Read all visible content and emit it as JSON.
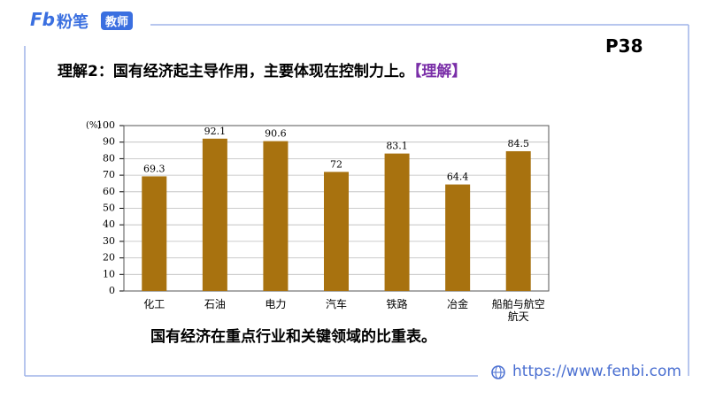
{
  "header": {
    "logo_mark": "Fb",
    "logo": "粉笔",
    "badge": "教师",
    "page": "P38"
  },
  "heading": {
    "text": "理解2：国有经济起主导作用，主要体现在控制力上。",
    "tag": "【理解】"
  },
  "chart_data": {
    "type": "bar",
    "y_unit": "(%)",
    "categories": [
      "化工",
      "石油",
      "电力",
      "汽车",
      "铁路",
      "冶金",
      "船舶与航空航天"
    ],
    "values": [
      69.3,
      92.1,
      90.6,
      72,
      83.1,
      64.4,
      84.5
    ],
    "color": "#a8720f",
    "ylim": [
      0,
      100
    ],
    "yticks": [
      0,
      10,
      20,
      30,
      40,
      50,
      60,
      70,
      80,
      90,
      100
    ],
    "grid": true,
    "caption": "国有经济在重点行业和关键领域的比重表。"
  },
  "footer": {
    "url": "https://www.fenbi.com"
  }
}
